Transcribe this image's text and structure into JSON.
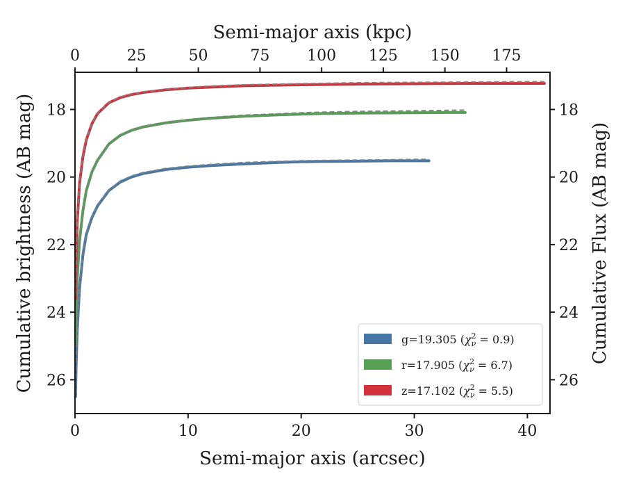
{
  "chart_data": {
    "type": "line",
    "xlabel": "Semi-major axis (arcsec)",
    "ylabel": "Cumulative brightness (AB mag)",
    "top_xlabel": "Semi-major axis (kpc)",
    "right_ylabel": "Cumulative Flux (AB mag)",
    "xlim": [
      0,
      42
    ],
    "ylim": [
      27,
      16.9
    ],
    "y_inverted": true,
    "top_xlim": [
      0,
      192.6
    ],
    "x_ticks": [
      0,
      10,
      20,
      30,
      40
    ],
    "x_tick_labels": [
      "0",
      "10",
      "20",
      "30",
      "40"
    ],
    "top_x_ticks": [
      0,
      25,
      50,
      75,
      100,
      125,
      150,
      175
    ],
    "top_x_tick_labels": [
      "0",
      "25",
      "50",
      "75",
      "100",
      "125",
      "150",
      "175"
    ],
    "y_ticks": [
      18,
      20,
      22,
      24,
      26
    ],
    "y_tick_labels": [
      "18",
      "20",
      "22",
      "24",
      "26"
    ],
    "grid": false,
    "legend_position": "bottom-right",
    "series": [
      {
        "name": "g",
        "legend_prefix": "g=19.305 (",
        "legend_chi": "χ",
        "legend_sub": "ν",
        "legend_sup": "2",
        "legend_suffix": " = 0.9)",
        "color": "#4477a5",
        "model_color": "#7f7f7f",
        "x": [
          0.05,
          0.1,
          0.2,
          0.4,
          0.7,
          1.0,
          1.5,
          2.0,
          3.0,
          4.0,
          5.0,
          6.0,
          8.0,
          10.0,
          12.0,
          15.0,
          18.0,
          20.0,
          22.0,
          25.0,
          28.0,
          30.0,
          31.3
        ],
        "y": [
          26.5,
          25.6,
          24.5,
          23.3,
          22.3,
          21.7,
          21.2,
          20.85,
          20.4,
          20.15,
          20.0,
          19.9,
          19.78,
          19.71,
          19.66,
          19.61,
          19.57,
          19.55,
          19.54,
          19.53,
          19.52,
          19.52,
          19.52
        ],
        "model_x": [
          0.05,
          0.1,
          0.2,
          0.4,
          0.7,
          1.0,
          1.5,
          2.0,
          3.0,
          4.0,
          5.0,
          6.0,
          8.0,
          10.0,
          12.0,
          15.0,
          18.0,
          20.0,
          22.0,
          25.0,
          28.0,
          30.0,
          31.3
        ],
        "model_y": [
          26.4,
          25.5,
          24.4,
          23.2,
          22.25,
          21.68,
          21.18,
          20.83,
          20.38,
          20.12,
          19.97,
          19.87,
          19.75,
          19.68,
          19.63,
          19.57,
          19.54,
          19.52,
          19.51,
          19.5,
          19.49,
          19.48,
          19.48
        ]
      },
      {
        "name": "r",
        "legend_prefix": "r=17.905 (",
        "legend_chi": "χ",
        "legend_sub": "ν",
        "legend_sup": "2",
        "legend_suffix": " = 6.7)",
        "color": "#55a055",
        "model_color": "#7f7f7f",
        "x": [
          0.05,
          0.1,
          0.2,
          0.4,
          0.7,
          1.0,
          1.5,
          2.0,
          3.0,
          4.0,
          5.0,
          6.0,
          8.0,
          10.0,
          12.0,
          15.0,
          18.0,
          20.0,
          22.0,
          25.0,
          30.0,
          33.0,
          34.5
        ],
        "y": [
          24.9,
          24.0,
          23.0,
          21.9,
          21.0,
          20.4,
          19.85,
          19.5,
          19.02,
          18.77,
          18.62,
          18.52,
          18.4,
          18.32,
          18.26,
          18.2,
          18.16,
          18.14,
          18.12,
          18.11,
          18.1,
          18.09,
          18.09
        ],
        "model_x": [
          0.05,
          0.1,
          0.2,
          0.4,
          0.7,
          1.0,
          1.5,
          2.0,
          3.0,
          4.0,
          5.0,
          6.0,
          8.0,
          10.0,
          12.0,
          15.0,
          18.0,
          20.0,
          22.0,
          25.0,
          30.0,
          33.0,
          34.5
        ],
        "model_y": [
          24.8,
          23.9,
          22.9,
          21.85,
          20.97,
          20.38,
          19.83,
          19.48,
          19.0,
          18.75,
          18.6,
          18.5,
          18.38,
          18.3,
          18.24,
          18.17,
          18.13,
          18.1,
          18.08,
          18.06,
          18.04,
          18.03,
          18.02
        ]
      },
      {
        "name": "z",
        "legend_prefix": "z=17.102 (",
        "legend_chi": "χ",
        "legend_sub": "ν",
        "legend_sup": "2",
        "legend_suffix": " = 5.5)",
        "color": "#d0313a",
        "model_color": "#7f7f7f",
        "x": [
          0.05,
          0.1,
          0.2,
          0.4,
          0.7,
          1.0,
          1.5,
          2.0,
          3.0,
          4.0,
          5.0,
          6.0,
          8.0,
          10.0,
          12.0,
          15.0,
          20.0,
          25.0,
          30.0,
          35.0,
          40.0,
          41.5
        ],
        "y": [
          23.6,
          22.5,
          21.3,
          20.2,
          19.4,
          18.9,
          18.42,
          18.12,
          17.8,
          17.65,
          17.56,
          17.5,
          17.42,
          17.37,
          17.34,
          17.3,
          17.27,
          17.25,
          17.24,
          17.23,
          17.23,
          17.23
        ],
        "model_x": [
          0.05,
          0.1,
          0.2,
          0.4,
          0.7,
          1.0,
          1.5,
          2.0,
          3.0,
          4.0,
          5.0,
          6.0,
          8.0,
          10.0,
          12.0,
          15.0,
          20.0,
          25.0,
          30.0,
          35.0,
          40.0,
          41.5
        ],
        "model_y": [
          23.5,
          22.45,
          21.25,
          20.15,
          19.37,
          18.88,
          18.4,
          18.1,
          17.78,
          17.63,
          17.54,
          17.48,
          17.4,
          17.35,
          17.31,
          17.27,
          17.24,
          17.21,
          17.2,
          17.19,
          17.18,
          17.18
        ]
      }
    ]
  }
}
